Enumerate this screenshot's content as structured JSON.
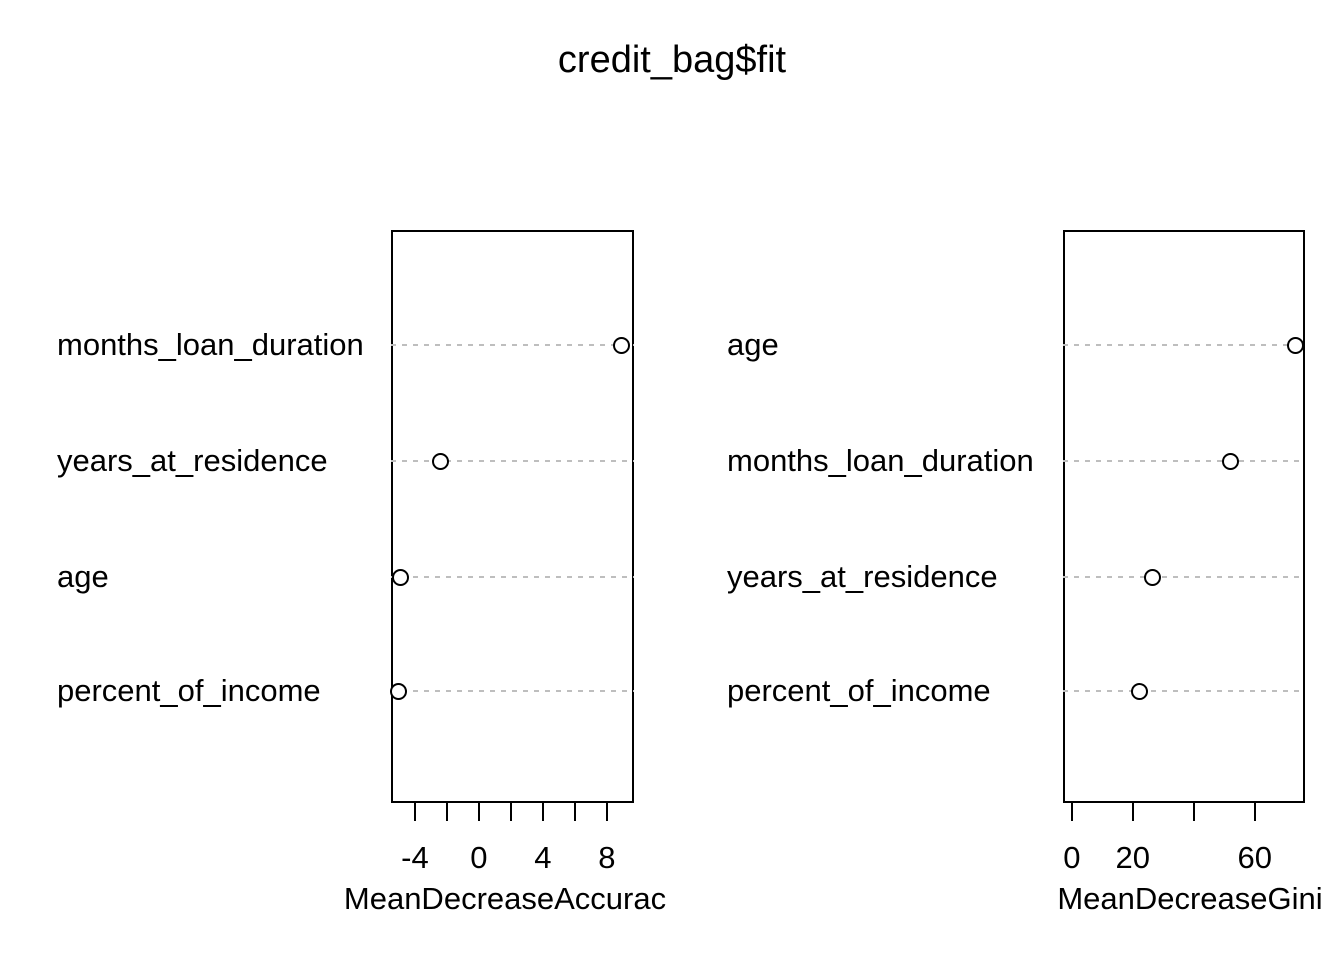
{
  "title": "credit_bag$fit",
  "colors": {
    "background": "#ffffff",
    "text": "#000000",
    "box_line": "#000000",
    "grid_line": "#bebebe",
    "point_stroke": "#000000",
    "point_fill": "#ffffff"
  },
  "chart_data": [
    {
      "type": "scatter",
      "subtype": "dotchart",
      "xlabel": "MeanDecreaseAccurac",
      "categories": [
        "months_loan_duration",
        "years_at_residence",
        "age",
        "percent_of_income"
      ],
      "values": [
        8.9,
        -2.4,
        -4.9,
        -5.0
      ],
      "xlim": [
        -5.5,
        9.7
      ],
      "xticks": [
        -4,
        -2,
        0,
        2,
        4,
        6,
        8
      ],
      "xtick_labels": [
        "-4",
        "",
        "0",
        "",
        "4",
        "",
        "8"
      ],
      "grid": "dotted horizontal gray lines per category",
      "point_style": "open-circle",
      "legend": "none"
    },
    {
      "type": "scatter",
      "subtype": "dotchart",
      "xlabel": "MeanDecreaseGini",
      "categories": [
        "age",
        "months_loan_duration",
        "years_at_residence",
        "percent_of_income"
      ],
      "values": [
        73.5,
        51.9,
        26.4,
        22.2
      ],
      "xlim": [
        -2.9,
        76.5
      ],
      "xticks": [
        0,
        20,
        40,
        60
      ],
      "xtick_labels": [
        "0",
        "20",
        "",
        "60"
      ],
      "grid": "dotted horizontal gray lines per category",
      "point_style": "open-circle",
      "legend": "none"
    }
  ]
}
